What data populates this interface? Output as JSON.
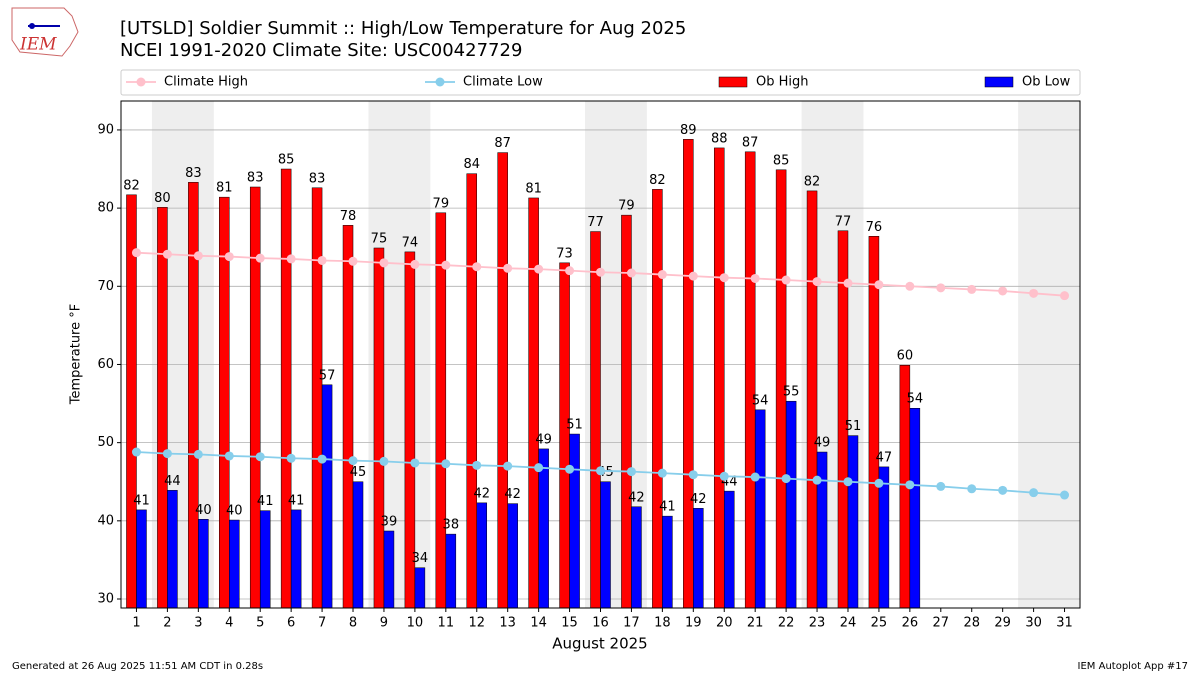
{
  "chart_data": {
    "type": "bar",
    "title": "[UTSLD] Soldier Summit  :: High/Low Temperature for Aug 2025",
    "subtitle": "NCEI 1991-2020 Climate Site: USC00427729",
    "xlabel": "August 2025",
    "ylabel": "Temperature °F",
    "categories": [
      "1",
      "2",
      "3",
      "4",
      "5",
      "6",
      "7",
      "8",
      "9",
      "10",
      "11",
      "12",
      "13",
      "14",
      "15",
      "16",
      "17",
      "18",
      "19",
      "20",
      "21",
      "22",
      "23",
      "24",
      "25",
      "26",
      "27",
      "28",
      "29",
      "30",
      "31"
    ],
    "ylim": [
      28.85,
      93.7
    ],
    "yticks": [
      30,
      40,
      50,
      60,
      70,
      80,
      90
    ],
    "grid": true,
    "legend": "top",
    "series": [
      {
        "name": "Climate High",
        "type": "line",
        "color": "#ffc0cb",
        "values": [
          74.3,
          74.1,
          73.9,
          73.8,
          73.6,
          73.5,
          73.3,
          73.2,
          73.0,
          72.8,
          72.7,
          72.5,
          72.3,
          72.2,
          72.0,
          71.8,
          71.7,
          71.5,
          71.3,
          71.1,
          71.0,
          70.8,
          70.6,
          70.4,
          70.2,
          70.0,
          69.8,
          69.6,
          69.4,
          69.1,
          68.8
        ]
      },
      {
        "name": "Climate Low",
        "type": "line",
        "color": "#87ceeb",
        "values": [
          48.8,
          48.6,
          48.5,
          48.3,
          48.2,
          48.0,
          47.9,
          47.7,
          47.6,
          47.4,
          47.3,
          47.1,
          47.0,
          46.8,
          46.6,
          46.4,
          46.3,
          46.1,
          45.9,
          45.7,
          45.6,
          45.4,
          45.2,
          45.0,
          44.8,
          44.6,
          44.4,
          44.1,
          43.9,
          43.6,
          43.3
        ]
      },
      {
        "name": "Ob High",
        "type": "bar",
        "color": "#ff0000",
        "values": [
          81.7,
          80.1,
          83.3,
          81.4,
          82.7,
          85.0,
          82.6,
          77.8,
          74.9,
          74.4,
          79.4,
          84.4,
          87.1,
          81.3,
          73.0,
          77.0,
          79.1,
          82.4,
          88.8,
          87.7,
          87.2,
          84.9,
          82.2,
          77.1,
          76.4,
          59.9,
          null,
          null,
          null,
          null,
          null
        ],
        "value_labels": [
          "82",
          "80",
          "83",
          "81",
          "83",
          "85",
          "83",
          "78",
          "75",
          "74",
          "79",
          "84",
          "87",
          "81",
          "73",
          "77",
          "79",
          "82",
          "89",
          "88",
          "87",
          "85",
          "82",
          "77",
          "76",
          "60",
          null,
          null,
          null,
          null,
          null
        ]
      },
      {
        "name": "Ob Low",
        "type": "bar",
        "color": "#0000ff",
        "values": [
          41.4,
          43.9,
          40.2,
          40.1,
          41.3,
          41.4,
          57.4,
          45.0,
          38.7,
          34.0,
          38.3,
          42.3,
          42.2,
          49.2,
          51.1,
          45.0,
          41.8,
          40.6,
          41.6,
          43.8,
          54.2,
          55.3,
          48.8,
          50.9,
          46.9,
          54.4,
          null,
          null,
          null,
          null,
          null
        ],
        "value_labels": [
          "41",
          "44",
          "40",
          "40",
          "41",
          "41",
          "57",
          "45",
          "39",
          "34",
          "38",
          "42",
          "42",
          "49",
          "51",
          "45",
          "42",
          "41",
          "42",
          "44",
          "54",
          "55",
          "49",
          "51",
          "47",
          "54",
          null,
          null,
          null,
          null,
          null
        ]
      }
    ]
  },
  "logo": "IEM",
  "footer": {
    "left": "Generated at 26 Aug 2025 11:51 AM CDT in 0.28s",
    "right": "IEM Autoplot App #17"
  }
}
